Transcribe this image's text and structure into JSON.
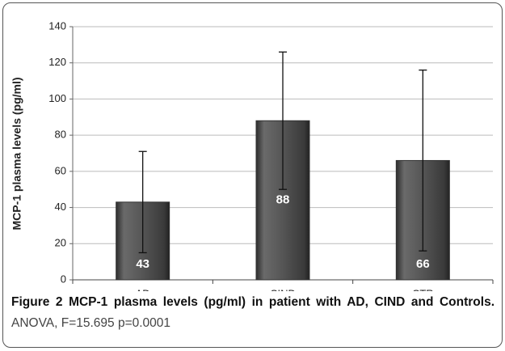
{
  "chart_data": {
    "type": "bar",
    "y_label": "MCP-1 plasma levels (pg/ml)",
    "categories": [
      "AD",
      "CIND",
      "CTR"
    ],
    "values": [
      43,
      88,
      66
    ],
    "errors": [
      28,
      38,
      50
    ],
    "color": "#4a4a4a",
    "ylim": [
      0,
      140
    ],
    "yticks": [
      0,
      20,
      40,
      60,
      80,
      100,
      120,
      140
    ],
    "grid": true
  },
  "caption": {
    "label": "Figure 2",
    "title": "MCP-1 plasma levels (pg/ml) in patient with AD, CIND and Controls.",
    "text": "ANOVA, F=15.695 p=0.0001"
  }
}
